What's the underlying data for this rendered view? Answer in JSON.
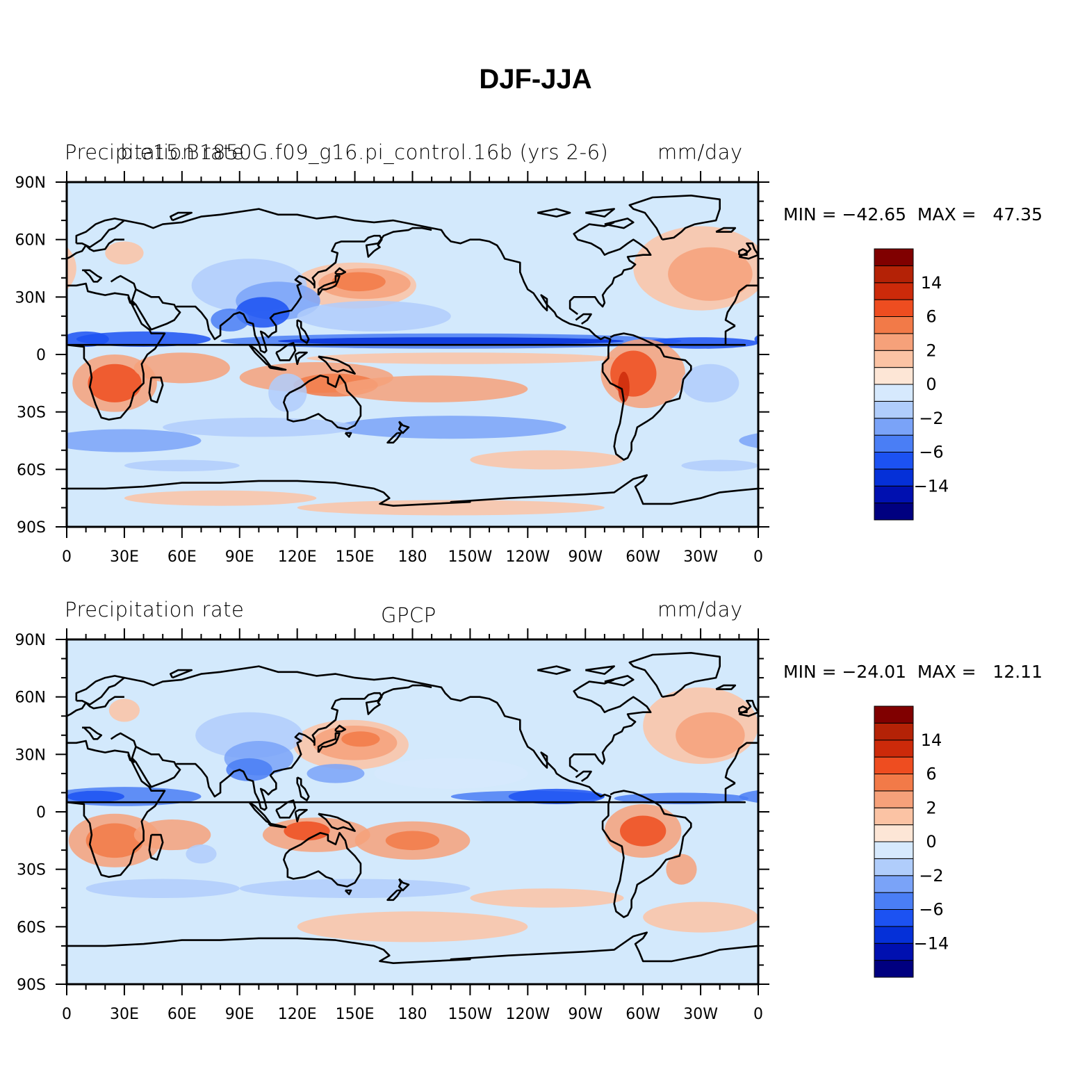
{
  "title": "DJF-JJA",
  "panels": [
    {
      "left_string": "Precipitation rate",
      "center_string": "b.e15.B1850G.f09_g16.pi_control.16b (yrs 2-6)",
      "right_string": "mm/day",
      "min_max": "MIN = −42.65  MAX =   47.35",
      "colorbar_labels": [
        "14",
        "6",
        "2",
        "0",
        "−2",
        "−6",
        "−14"
      ]
    },
    {
      "left_string": "Precipitation rate",
      "center_string": "GPCP",
      "right_string": "mm/day",
      "min_max": "MIN = −24.01  MAX =   12.11",
      "colorbar_labels": [
        "14",
        "6",
        "2",
        "0",
        "−2",
        "−6",
        "−14"
      ]
    }
  ],
  "lat_labels": [
    "90N",
    "60N",
    "30N",
    "0",
    "30S",
    "60S",
    "90S"
  ],
  "lon_labels": [
    "0",
    "30E",
    "60E",
    "90E",
    "120E",
    "150E",
    "180",
    "150W",
    "120W",
    "90W",
    "60W",
    "30W",
    "0"
  ],
  "colors": {
    "ocean_background": "#d3e9fc",
    "colorbar": [
      "#000080",
      "#0010b0",
      "#0530d8",
      "#1c52f2",
      "#4a7ef5",
      "#7aa3f8",
      "#b0cdfb",
      "#d6e9fd",
      "#fde6d6",
      "#fbc3a4",
      "#f6a17a",
      "#f27a48",
      "#ee4d20",
      "#cc2a0a",
      "#b42206",
      "#800000"
    ],
    "coastline": "#000000"
  }
}
